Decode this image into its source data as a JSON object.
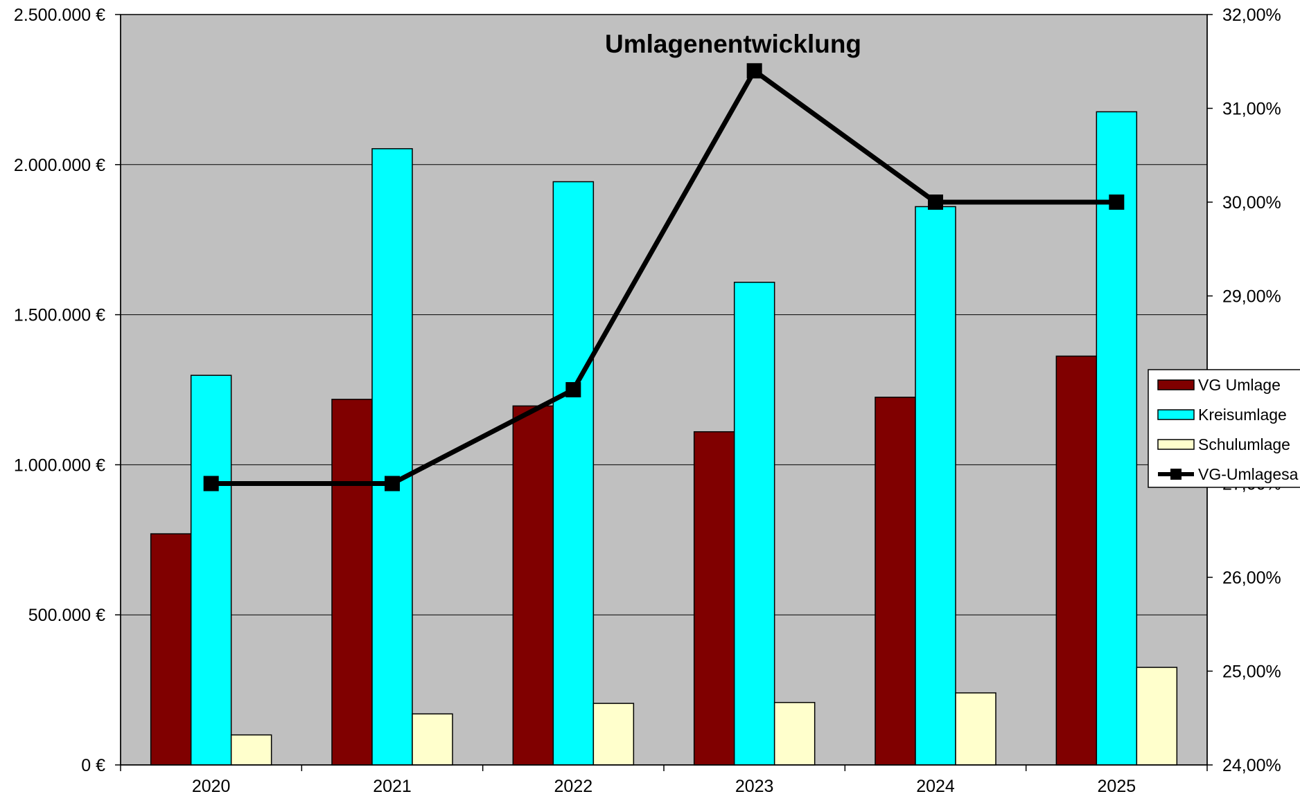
{
  "chart_data": {
    "type": "bar",
    "title": "Umlagenentwicklung",
    "categories": [
      "2020",
      "2021",
      "2022",
      "2023",
      "2024",
      "2025"
    ],
    "series": [
      {
        "name": "VG Umlage",
        "axis": "left",
        "color": "#800000",
        "values": [
          770000,
          1218000,
          1196000,
          1110000,
          1225000,
          1362000
        ]
      },
      {
        "name": "Kreisumlage",
        "axis": "left",
        "color": "#00FFFF",
        "values": [
          1298000,
          2053000,
          1943000,
          1608000,
          1860000,
          2176000
        ]
      },
      {
        "name": "Schulumlage",
        "axis": "left",
        "color": "#FFFFCC",
        "values": [
          100000,
          170000,
          205000,
          208000,
          240000,
          325000
        ]
      }
    ],
    "line_series": {
      "name": "VG-Umlagesa",
      "axis": "right",
      "type": "line",
      "color": "#000000",
      "values": [
        27.0,
        27.0,
        28.0,
        31.4,
        30.0,
        30.0
      ]
    },
    "y_left": {
      "ylim": [
        0,
        2500000
      ],
      "ticks": [
        0,
        500000,
        1000000,
        1500000,
        2000000,
        2500000
      ],
      "tick_labels": [
        "0 €",
        "500.000 €",
        "1.000.000 €",
        "1.500.000 €",
        "2.000.000 €",
        "2.500.000 €"
      ]
    },
    "y_right": {
      "ylim": [
        24,
        32
      ],
      "ticks": [
        24,
        25,
        26,
        27,
        28,
        29,
        30,
        31,
        32
      ],
      "tick_labels": [
        "24,00%",
        "25,00%",
        "26,00%",
        "27,00%",
        "28,00%",
        "29,00%",
        "30,00%",
        "31,00%",
        "32,00%"
      ]
    },
    "grid": true,
    "plot_background": "#C0C0C0",
    "legend_position": "right"
  }
}
